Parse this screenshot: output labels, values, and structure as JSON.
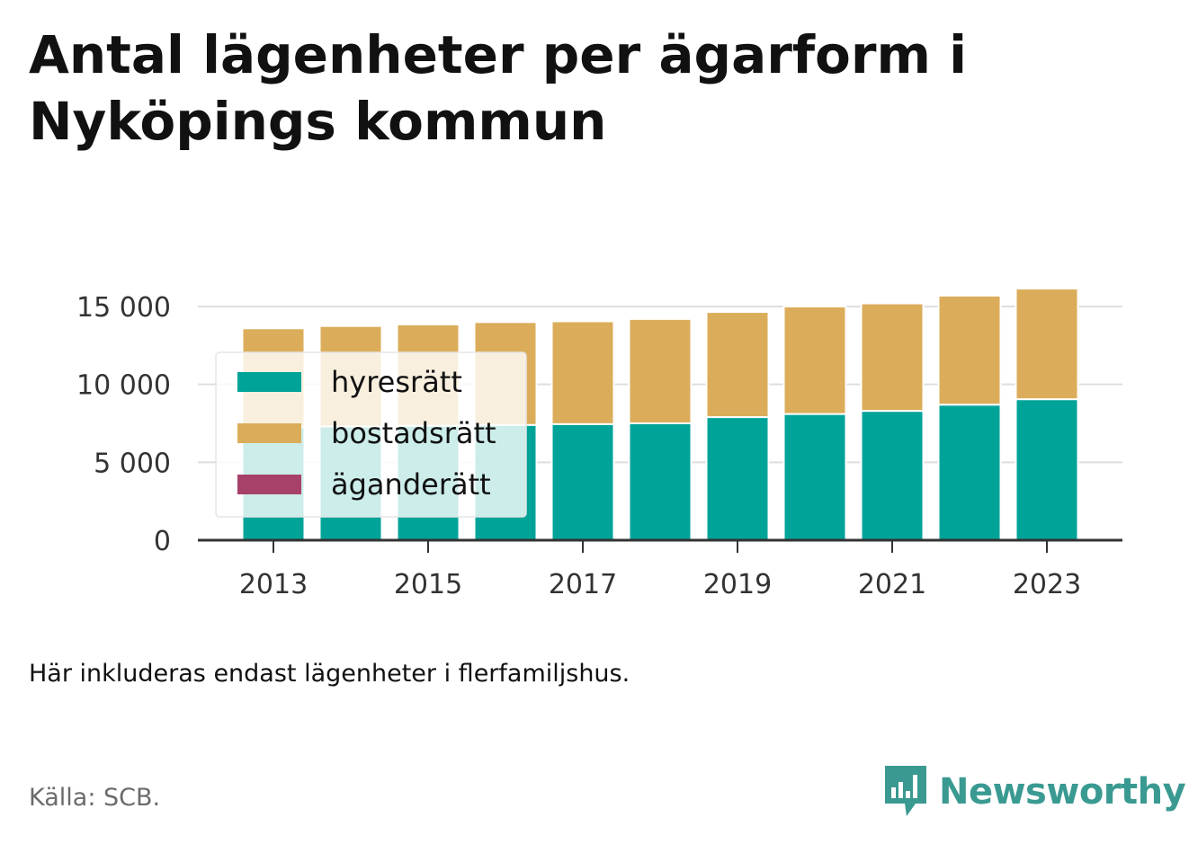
{
  "title": "Antal lägenheter per ägarform i Nyköpings kommun",
  "caption": "Här inkluderas endast lägenheter i flerfamiljshus.",
  "source": "Källa: SCB.",
  "brand": {
    "name": "Newsworthy",
    "icon": "bar-chart-icon",
    "color": "#3a9a92"
  },
  "chart_data": {
    "type": "bar",
    "stacked": true,
    "x": [
      2013,
      2014,
      2015,
      2016,
      2017,
      2018,
      2019,
      2020,
      2021,
      2022,
      2023
    ],
    "x_tick_labels": [
      "2013",
      "2015",
      "2017",
      "2019",
      "2021",
      "2023"
    ],
    "y_ticks": [
      0,
      5000,
      10000,
      15000
    ],
    "y_tick_labels": [
      "0",
      "5 000",
      "10 000",
      "15 000"
    ],
    "ylim": [
      0,
      16500
    ],
    "grid": true,
    "legend_position": "top-left",
    "series": [
      {
        "name": "hyresrätt",
        "color": "#00a398",
        "values": [
          7250,
          7300,
          7350,
          7400,
          7450,
          7500,
          7900,
          8100,
          8300,
          8700,
          9050
        ]
      },
      {
        "name": "bostadsrätt",
        "color": "#dbad5a",
        "values": [
          6350,
          6450,
          6500,
          6600,
          6600,
          6700,
          6750,
          6900,
          6900,
          7000,
          7100
        ]
      },
      {
        "name": "äganderätt",
        "color": "#a8416a",
        "values": [
          0,
          0,
          0,
          0,
          0,
          0,
          0,
          0,
          0,
          0,
          0
        ]
      }
    ]
  }
}
